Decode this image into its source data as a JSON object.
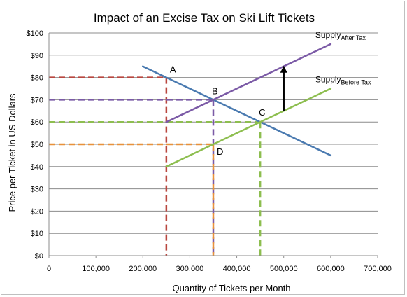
{
  "chart_data": {
    "type": "line",
    "title": "Impact of an Excise Tax on Ski Lift Tickets",
    "xlabel": "Quantity of Tickets per Month",
    "ylabel": "Price per Ticket in US Dollars",
    "xlim": [
      0,
      700000
    ],
    "ylim": [
      0,
      100
    ],
    "x_ticks": [
      0,
      100000,
      200000,
      300000,
      400000,
      500000,
      600000,
      700000
    ],
    "x_tick_labels": [
      "0",
      "100,000",
      "200,000",
      "300,000",
      "400,000",
      "500,000",
      "600,000",
      "700,000"
    ],
    "y_ticks": [
      0,
      10,
      20,
      30,
      40,
      50,
      60,
      70,
      80,
      90,
      100
    ],
    "y_tick_labels": [
      "$0",
      "$10",
      "$20",
      "$30",
      "$40",
      "$50",
      "$60",
      "$70",
      "$80",
      "$90",
      "$100"
    ],
    "grid": "horizontal",
    "series": [
      {
        "key": "demand",
        "color": "#4a7ab0",
        "points": [
          [
            200000,
            85
          ],
          [
            600000,
            45
          ]
        ]
      },
      {
        "key": "supply_after",
        "name": "Supply",
        "name_sub": "After Tax",
        "color": "#7b5aa6",
        "points": [
          [
            250000,
            60
          ],
          [
            600000,
            95
          ]
        ]
      },
      {
        "key": "supply_before",
        "name": "Supply",
        "name_sub": "Before Tax",
        "color": "#8dbe4f",
        "points": [
          [
            250000,
            40
          ],
          [
            600000,
            75
          ]
        ]
      }
    ],
    "points": [
      {
        "label": "A",
        "x": 250000,
        "y": 80
      },
      {
        "label": "B",
        "x": 350000,
        "y": 70
      },
      {
        "label": "C",
        "x": 450000,
        "y": 60
      },
      {
        "label": "D",
        "x": 350000,
        "y": 50
      }
    ],
    "reference_lines": [
      {
        "y": 80,
        "x": 250000,
        "color": "#b9463f"
      },
      {
        "y": 70,
        "x": 350000,
        "color": "#7b5aa6"
      },
      {
        "y": 60,
        "x": 450000,
        "color": "#8dbe4f"
      },
      {
        "y": 50,
        "x": 350000,
        "color": "#e8913a"
      }
    ],
    "arrow": {
      "x": 500000,
      "from_y": 65,
      "to_y": 85,
      "color": "#000000"
    }
  }
}
